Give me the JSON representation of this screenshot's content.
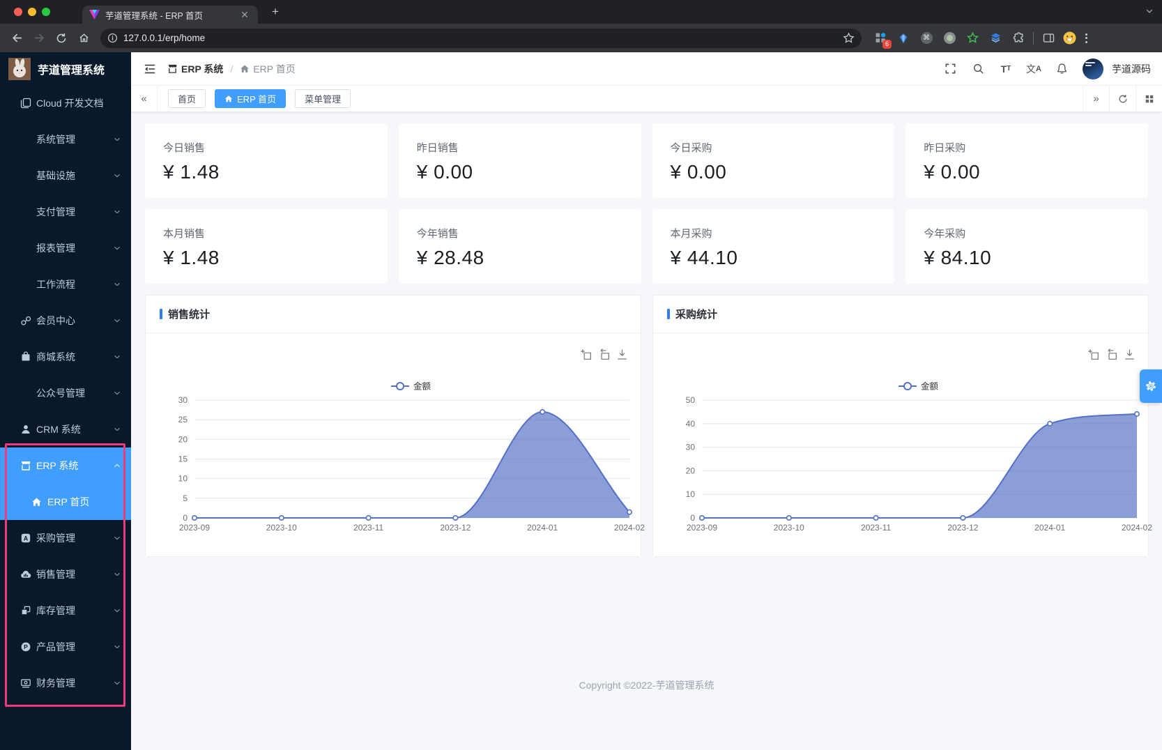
{
  "browser": {
    "tab_title": "芋道管理系统 - ERP 首页",
    "url": "127.0.0.1/erp/home",
    "extensions": [
      {
        "name": "blocker-extension-icon",
        "badge": "6"
      },
      {
        "name": "gem-extension-icon"
      },
      {
        "name": "command-extension-icon"
      },
      {
        "name": "recorder-extension-icon"
      },
      {
        "name": "star-extension-icon"
      },
      {
        "name": "layers-extension-icon"
      },
      {
        "name": "puzzle-extensions-icon"
      }
    ]
  },
  "app": {
    "logo_title": "芋道管理系统",
    "user_name": "芋道源码"
  },
  "sidebar": {
    "items": [
      {
        "label": "Cloud 开发文档",
        "icon": "document-icon",
        "level": 0,
        "chevron": null,
        "highlight": false
      },
      {
        "label": "系统管理",
        "icon": null,
        "level": 0,
        "chevron": "down",
        "highlight": false
      },
      {
        "label": "基础设施",
        "icon": null,
        "level": 0,
        "chevron": "down",
        "highlight": false
      },
      {
        "label": "支付管理",
        "icon": null,
        "level": 0,
        "chevron": "down",
        "highlight": false
      },
      {
        "label": "报表管理",
        "icon": null,
        "level": 0,
        "chevron": "down",
        "highlight": false
      },
      {
        "label": "工作流程",
        "icon": null,
        "level": 0,
        "chevron": "down",
        "highlight": false
      },
      {
        "label": "会员中心",
        "icon": "member-icon",
        "level": 0,
        "chevron": "down",
        "highlight": false
      },
      {
        "label": "商城系统",
        "icon": "mall-icon",
        "level": 0,
        "chevron": "down",
        "highlight": false
      },
      {
        "label": "公众号管理",
        "icon": null,
        "level": 0,
        "chevron": "down",
        "highlight": false
      },
      {
        "label": "CRM 系统",
        "icon": "crm-icon",
        "level": 0,
        "chevron": "down",
        "highlight": false
      },
      {
        "label": "ERP 系统",
        "icon": "storefront-icon",
        "level": 0,
        "chevron": "up",
        "highlight": true
      },
      {
        "label": "ERP 首页",
        "icon": "home-icon",
        "level": 1,
        "chevron": null,
        "highlight": true,
        "active": true
      },
      {
        "label": "采购管理",
        "icon": "purchase-icon",
        "level": 0,
        "chevron": "down",
        "highlight": false
      },
      {
        "label": "销售管理",
        "icon": "sales-icon",
        "level": 0,
        "chevron": "down",
        "highlight": false
      },
      {
        "label": "库存管理",
        "icon": "inventory-icon",
        "level": 0,
        "chevron": "down",
        "highlight": false
      },
      {
        "label": "产品管理",
        "icon": "product-icon",
        "level": 0,
        "chevron": "down",
        "highlight": false
      },
      {
        "label": "财务管理",
        "icon": "finance-icon",
        "level": 0,
        "chevron": "down",
        "highlight": false
      }
    ]
  },
  "breadcrumb": [
    {
      "label": "ERP 系统",
      "icon": "storefront-icon"
    },
    {
      "label": "ERP 首页",
      "icon": "home-icon"
    }
  ],
  "tags": [
    {
      "label": "首页",
      "active": false,
      "icon": null
    },
    {
      "label": "ERP 首页",
      "active": true,
      "icon": "home-icon"
    },
    {
      "label": "菜单管理",
      "active": false,
      "icon": null
    }
  ],
  "stats": [
    {
      "label": "今日销售",
      "value": "¥ 1.48"
    },
    {
      "label": "昨日销售",
      "value": "¥ 0.00"
    },
    {
      "label": "今日采购",
      "value": "¥ 0.00"
    },
    {
      "label": "昨日采购",
      "value": "¥ 0.00"
    },
    {
      "label": "本月销售",
      "value": "¥ 1.48"
    },
    {
      "label": "今年销售",
      "value": "¥ 28.48"
    },
    {
      "label": "本月采购",
      "value": "¥ 44.10"
    },
    {
      "label": "今年采购",
      "value": "¥ 84.10"
    }
  ],
  "chart_data": [
    {
      "type": "area",
      "title": "销售统计",
      "legend": [
        "金额"
      ],
      "legend_position": "top-center",
      "categories": [
        "2023-09",
        "2023-10",
        "2023-11",
        "2023-12",
        "2024-01",
        "2024-02"
      ],
      "series": [
        {
          "name": "金额",
          "values": [
            0,
            0,
            0,
            0,
            27,
            1.48
          ]
        }
      ],
      "ylim": [
        0,
        30
      ],
      "ytick": 5,
      "grid": true,
      "smooth": true
    },
    {
      "type": "area",
      "title": "采购统计",
      "legend": [
        "金额"
      ],
      "legend_position": "top-center",
      "categories": [
        "2023-09",
        "2023-10",
        "2023-11",
        "2023-12",
        "2024-01",
        "2024-02"
      ],
      "series": [
        {
          "name": "金额",
          "values": [
            0,
            0,
            0,
            0,
            40,
            44.1
          ]
        }
      ],
      "ylim": [
        0,
        50
      ],
      "ytick": 10,
      "grid": true,
      "smooth": true
    }
  ],
  "footer": {
    "copyright": "Copyright ©2022-芋道管理系统"
  },
  "colors": {
    "accent": "#409eff",
    "sidebar_bg": "#07192b",
    "annotation": "#f13a7d",
    "chart_line": "#5470c6",
    "chart_fill": "rgba(84,112,198,0.68)",
    "content_bg": "#f5f7fa"
  }
}
